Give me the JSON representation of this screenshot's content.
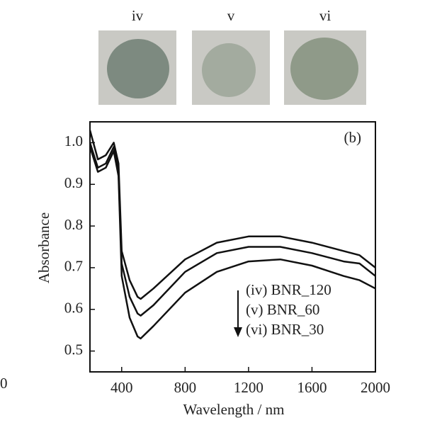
{
  "chart_data": {
    "type": "line",
    "panel_label": "(b)",
    "xlabel": "Wavelength / nm",
    "ylabel": "Absorbance",
    "x": [
      200,
      250,
      300,
      350,
      380,
      400,
      450,
      500,
      520,
      600,
      800,
      1000,
      1200,
      1400,
      1600,
      1800,
      1900,
      2000
    ],
    "series": [
      {
        "name": "(iv) BNR_120",
        "color": "#111111",
        "values": [
          1.03,
          0.96,
          0.97,
          1.0,
          0.95,
          0.74,
          0.67,
          0.63,
          0.625,
          0.65,
          0.72,
          0.76,
          0.775,
          0.775,
          0.76,
          0.74,
          0.73,
          0.7
        ]
      },
      {
        "name": "(v) BNR_60",
        "color": "#111111",
        "values": [
          1.0,
          0.94,
          0.95,
          0.99,
          0.93,
          0.71,
          0.63,
          0.59,
          0.585,
          0.61,
          0.69,
          0.735,
          0.75,
          0.75,
          0.735,
          0.715,
          0.71,
          0.68
        ]
      },
      {
        "name": "(vi) BNR_30",
        "color": "#111111",
        "values": [
          0.99,
          0.93,
          0.94,
          0.98,
          0.92,
          0.68,
          0.58,
          0.535,
          0.53,
          0.56,
          0.64,
          0.69,
          0.715,
          0.72,
          0.705,
          0.68,
          0.67,
          0.65
        ]
      }
    ],
    "xlim": [
      200,
      2000
    ],
    "xticks": [
      400,
      800,
      1200,
      1600,
      2000
    ],
    "ylim": [
      0.45,
      1.05
    ],
    "yticks": [
      0.5,
      0.6,
      0.7,
      0.8,
      0.9,
      {
        "value": 1,
        "label": "1.0"
      }
    ]
  },
  "photos": [
    "iv",
    "v",
    "vi"
  ],
  "fragments": [
    "0"
  ]
}
